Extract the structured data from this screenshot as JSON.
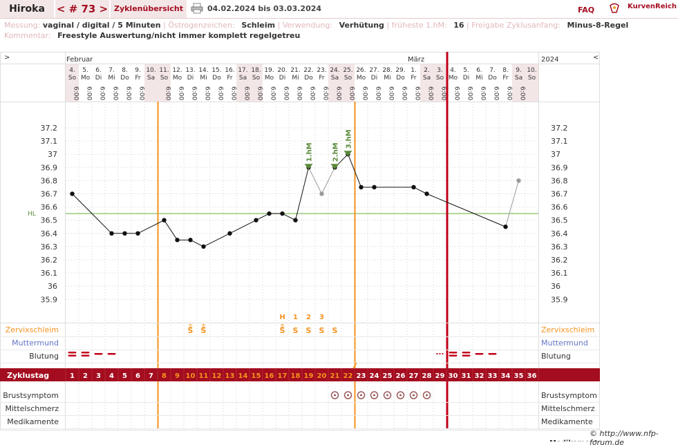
{
  "header": {
    "user": "Hiroka",
    "cycle_label": "< # 73 >",
    "overview_label": "Zyklenübersicht",
    "date_range": "04.02.2024 bis 03.03.2024",
    "faq": "FAQ",
    "logo_text": "KurvenReich"
  },
  "meta": {
    "row1": [
      {
        "label": "Messung:",
        "value": "vaginal / digital / 5 Minuten"
      },
      {
        "label": "Östrogenzeichen:",
        "value": "Schleim"
      },
      {
        "label": "Verwendung:",
        "value": "Verhütung"
      },
      {
        "label": "früheste 1.hM:",
        "value": "16"
      },
      {
        "label": "Freigabe Zyklusanfang:",
        "value": "Minus-8-Regel"
      }
    ],
    "row2": [
      {
        "label": "Kommentar:",
        "value": "Freestyle Auswertung/nicht immer komplett regelgetreu"
      }
    ]
  },
  "nav": {
    "left_arrow": ">",
    "right_arrow": "<",
    "year": "2024"
  },
  "months": [
    {
      "label": "Februar",
      "start_col": 0
    },
    {
      "label": "März",
      "start_col": 26
    }
  ],
  "colors": {
    "accent": "#a30d1f",
    "orange": "#f5921e",
    "green": "#5a8a3a",
    "coverline": "#6aab3a",
    "bleeding": "#c2001a",
    "blue": "#6474c4",
    "weekend_bg": "#f3e6e7",
    "grid": "#cccccc"
  },
  "chart_data": {
    "type": "line",
    "columns": 36,
    "days": [
      "4.",
      "5.",
      "6.",
      "7.",
      "8.",
      "9.",
      "10.",
      "11.",
      "12.",
      "13.",
      "14.",
      "15.",
      "16.",
      "17.",
      "18.",
      "19.",
      "20.",
      "21.",
      "22.",
      "23.",
      "24.",
      "25.",
      "26.",
      "27.",
      "28.",
      "29.",
      "1.",
      "2.",
      "3.",
      "4.",
      "5.",
      "6.",
      "7.",
      "8.",
      "9.",
      "10."
    ],
    "weekdays": [
      "So",
      "Mo",
      "Di",
      "Mi",
      "Do",
      "Fr",
      "Sa",
      "So",
      "Mo",
      "Di",
      "Mi",
      "Do",
      "Fr",
      "Sa",
      "So",
      "Mo",
      "Di",
      "Mi",
      "Do",
      "Fr",
      "Sa",
      "So",
      "Mo",
      "Di",
      "Mi",
      "Do",
      "Fr",
      "Sa",
      "So",
      "Mo",
      "Di",
      "Mi",
      "Do",
      "Fr",
      "Sa",
      "So"
    ],
    "times": [
      "6:00",
      "6:00",
      "6:00",
      "6:00",
      "6:00",
      "6:00",
      "",
      "6:00",
      "6:00",
      "6:00",
      "6:00",
      "6:00",
      "6:00",
      "6:00",
      "6:00",
      "6:00",
      "6:00",
      "6:00",
      "6:00",
      "6:00",
      "6:00",
      "6:00",
      "6:00",
      "6:00",
      "6:00",
      "6:00",
      "6:00",
      "6:00",
      "6:00",
      "6:00",
      "6:00",
      "6:00",
      "6:00",
      "6:00",
      "6:00",
      ""
    ],
    "cycle_days": [
      1,
      2,
      3,
      4,
      5,
      6,
      7,
      8,
      9,
      10,
      11,
      12,
      13,
      14,
      15,
      16,
      17,
      18,
      19,
      20,
      21,
      22,
      23,
      24,
      25,
      26,
      27,
      28,
      29,
      30,
      31,
      32,
      33,
      34,
      35,
      36
    ],
    "yticks": [
      37.2,
      37.1,
      37,
      36.9,
      36.8,
      36.7,
      36.6,
      36.5,
      36.4,
      36.3,
      36.2,
      36.1,
      36,
      35.9
    ],
    "ylim": [
      35.9,
      37.2
    ],
    "coverline": 36.55,
    "coverline_label": "HL",
    "temperatures": [
      {
        "day": 1,
        "value": 36.7
      },
      {
        "day": 4,
        "value": 36.4
      },
      {
        "day": 5,
        "value": 36.4
      },
      {
        "day": 6,
        "value": 36.4
      },
      {
        "day": 8,
        "value": 36.5
      },
      {
        "day": 9,
        "value": 36.35
      },
      {
        "day": 10,
        "value": 36.35
      },
      {
        "day": 11,
        "value": 36.3
      },
      {
        "day": 13,
        "value": 36.4
      },
      {
        "day": 15,
        "value": 36.5
      },
      {
        "day": 16,
        "value": 36.55
      },
      {
        "day": 17,
        "value": 36.55
      },
      {
        "day": 18,
        "value": 36.5
      },
      {
        "day": 19,
        "value": 36.9
      },
      {
        "day": 20,
        "value": 36.7,
        "excluded": true
      },
      {
        "day": 21,
        "value": 36.9
      },
      {
        "day": 22,
        "value": 37.0
      },
      {
        "day": 23,
        "value": 36.75
      },
      {
        "day": 24,
        "value": 36.75
      },
      {
        "day": 27,
        "value": 36.75
      },
      {
        "day": 28,
        "value": 36.7
      },
      {
        "day": 34,
        "value": 36.45
      },
      {
        "day": 35,
        "value": 36.8,
        "excluded": true
      }
    ],
    "higher_measurements": [
      {
        "day": 19,
        "label": "1.hM"
      },
      {
        "day": 21,
        "label": "2.hM"
      },
      {
        "day": 22,
        "label": "3.hM"
      }
    ],
    "markers": {
      "orange_lines_after_day": [
        7,
        22
      ],
      "cycle_end_after_day": 29
    },
    "mucus": [
      {
        "day": 10,
        "symbol": "S",
        "mark": "±"
      },
      {
        "day": 11,
        "symbol": "S",
        "mark": "±"
      },
      {
        "day": 17,
        "symbol": "S",
        "mark": "±",
        "top": "H"
      },
      {
        "day": 18,
        "symbol": "S",
        "top": "1"
      },
      {
        "day": 19,
        "symbol": "S",
        "top": "2"
      },
      {
        "day": 20,
        "symbol": "S",
        "top": "3"
      },
      {
        "day": 21,
        "symbol": "S"
      }
    ],
    "bleeding": [
      {
        "day": 1,
        "level": 2
      },
      {
        "day": 2,
        "level": 2
      },
      {
        "day": 3,
        "level": 1
      },
      {
        "day": 4,
        "level": 1
      },
      {
        "day": 29,
        "level": 0
      },
      {
        "day": 30,
        "level": 2
      },
      {
        "day": 31,
        "level": 2
      },
      {
        "day": 32,
        "level": 1
      },
      {
        "day": 33,
        "level": 1
      }
    ],
    "breast_symptom_days": [
      21,
      22,
      23,
      24,
      25,
      26,
      27,
      28
    ],
    "row_labels": {
      "mucus": "Zervixschleim",
      "cervix": "Muttermund",
      "bleeding": "Blutung",
      "cycle_day": "Zyklustag",
      "breast": "Brustsymptom",
      "midpain": "Mittelschmerz",
      "meds": "Medikamente"
    }
  },
  "footer": {
    "copyright": "© http://www.nfp-forum.de",
    "cutoff": "Medikamente"
  }
}
